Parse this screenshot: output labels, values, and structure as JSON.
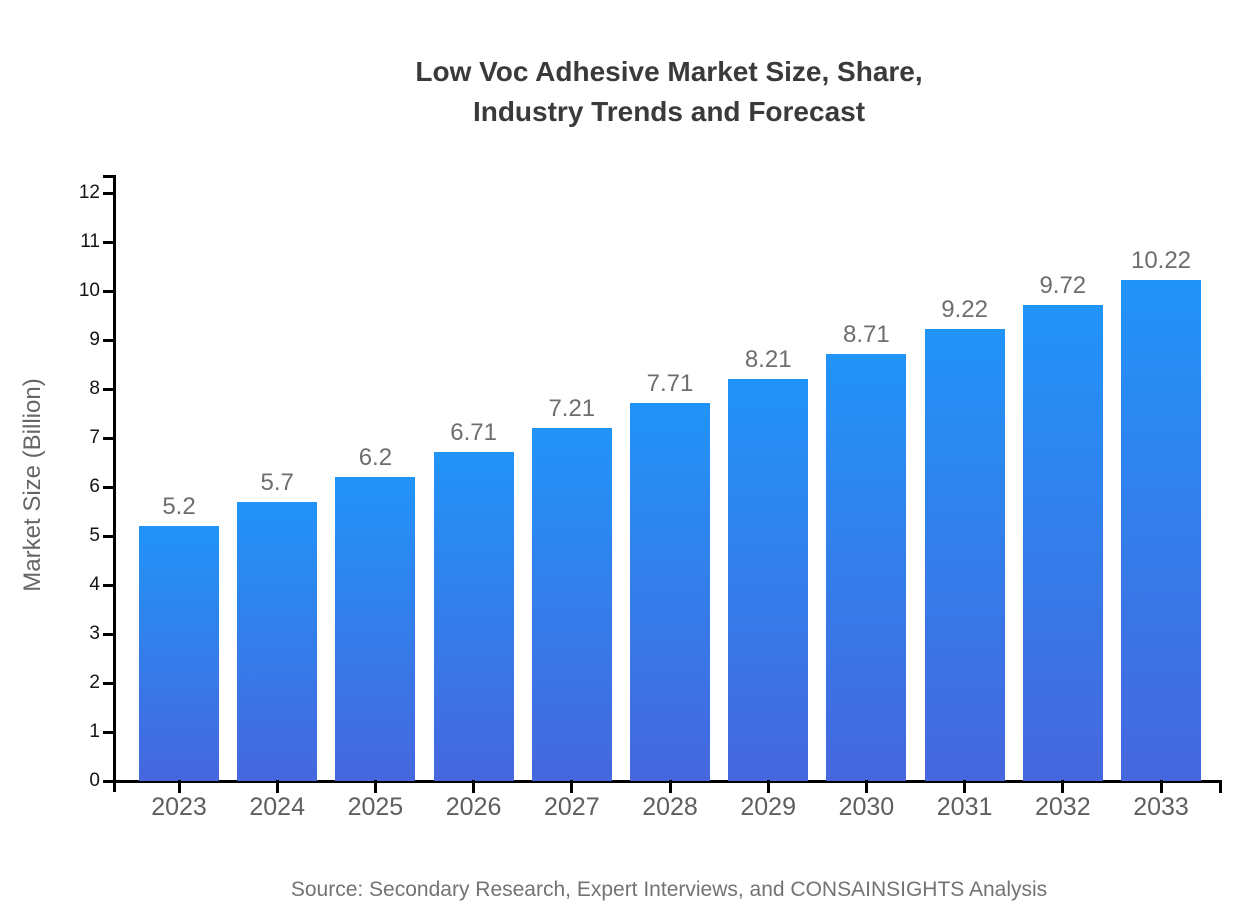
{
  "chart_data": {
    "type": "bar",
    "title": "Low Voc Adhesive Market Size, Share, Industry Trends and Forecast",
    "title_lines": [
      "Low Voc Adhesive Market Size, Share,",
      "Industry Trends and Forecast"
    ],
    "categories": [
      "2023",
      "2024",
      "2025",
      "2026",
      "2027",
      "2028",
      "2029",
      "2030",
      "2031",
      "2032",
      "2033"
    ],
    "values": [
      5.2,
      5.7,
      6.2,
      6.71,
      7.21,
      7.71,
      8.21,
      8.71,
      9.22,
      9.72,
      10.22
    ],
    "xlabel": "",
    "ylabel": "Market Size (Billion)",
    "ylim": [
      0,
      12
    ],
    "yticks": [
      0,
      1,
      2,
      3,
      4,
      5,
      6,
      7,
      8,
      9,
      10,
      11,
      12
    ],
    "grid": false,
    "legend": "none",
    "value_labels_shown": true,
    "source": "Source: Secondary Research, Expert Interviews, and CONSAINSIGHTS Analysis",
    "colors": {
      "bar_gradient_top": "#2194F8",
      "bar_gradient_bottom": "#4667DE",
      "axis": "#000000",
      "value_label": "#6E6E6E",
      "ytick_label": "#141414",
      "xtick_label": "#5F5F5F",
      "title": "#3A3A3A",
      "source": "#737373"
    }
  }
}
